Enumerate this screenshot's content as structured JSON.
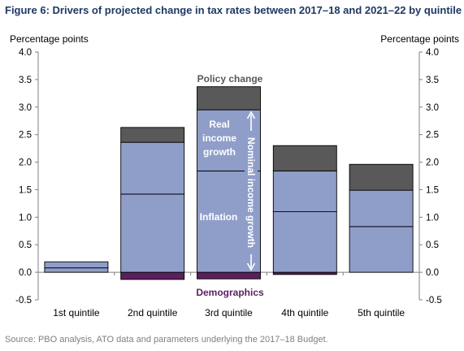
{
  "title": "Figure 6: Drivers of projected change in tax rates between 2017–18 and 2021–22 by quintile",
  "source": "Source: PBO analysis, ATO data and parameters underlying the 2017–18 Budget.",
  "chart_data": {
    "type": "bar",
    "stacked": true,
    "categories": [
      "1st quintile",
      "2nd quintile",
      "3rd quintile",
      "4th quintile",
      "5th quintile"
    ],
    "series": [
      {
        "name": "Demographics",
        "color": "#5b1f5e",
        "values": [
          0.0,
          -0.13,
          -0.12,
          -0.04,
          0.0
        ]
      },
      {
        "name": "Inflation",
        "color": "#8f9ec9",
        "values": [
          0.08,
          1.42,
          1.84,
          1.1,
          0.83
        ]
      },
      {
        "name": "Real income growth",
        "color": "#8f9ec9",
        "values": [
          0.11,
          0.94,
          1.11,
          0.74,
          0.66
        ]
      },
      {
        "name": "Policy change",
        "color": "#595959",
        "values": [
          0.0,
          0.27,
          0.42,
          0.46,
          0.47
        ]
      }
    ],
    "ylabel_left": "Percentage points",
    "ylabel_right": "Percentage points",
    "ylim": [
      -0.5,
      4.0
    ],
    "yticks": [
      "-0.5",
      "0.0",
      "0.5",
      "1.0",
      "1.5",
      "2.0",
      "2.5",
      "3.0",
      "3.5",
      "4.0"
    ],
    "grid": false,
    "annotations": {
      "policy": "Policy change",
      "real_1": "Real",
      "real_2": "income",
      "real_3": "growth",
      "inflation": "Inflation",
      "nominal": "Nominal income growth",
      "demographics": "Demographics"
    }
  }
}
